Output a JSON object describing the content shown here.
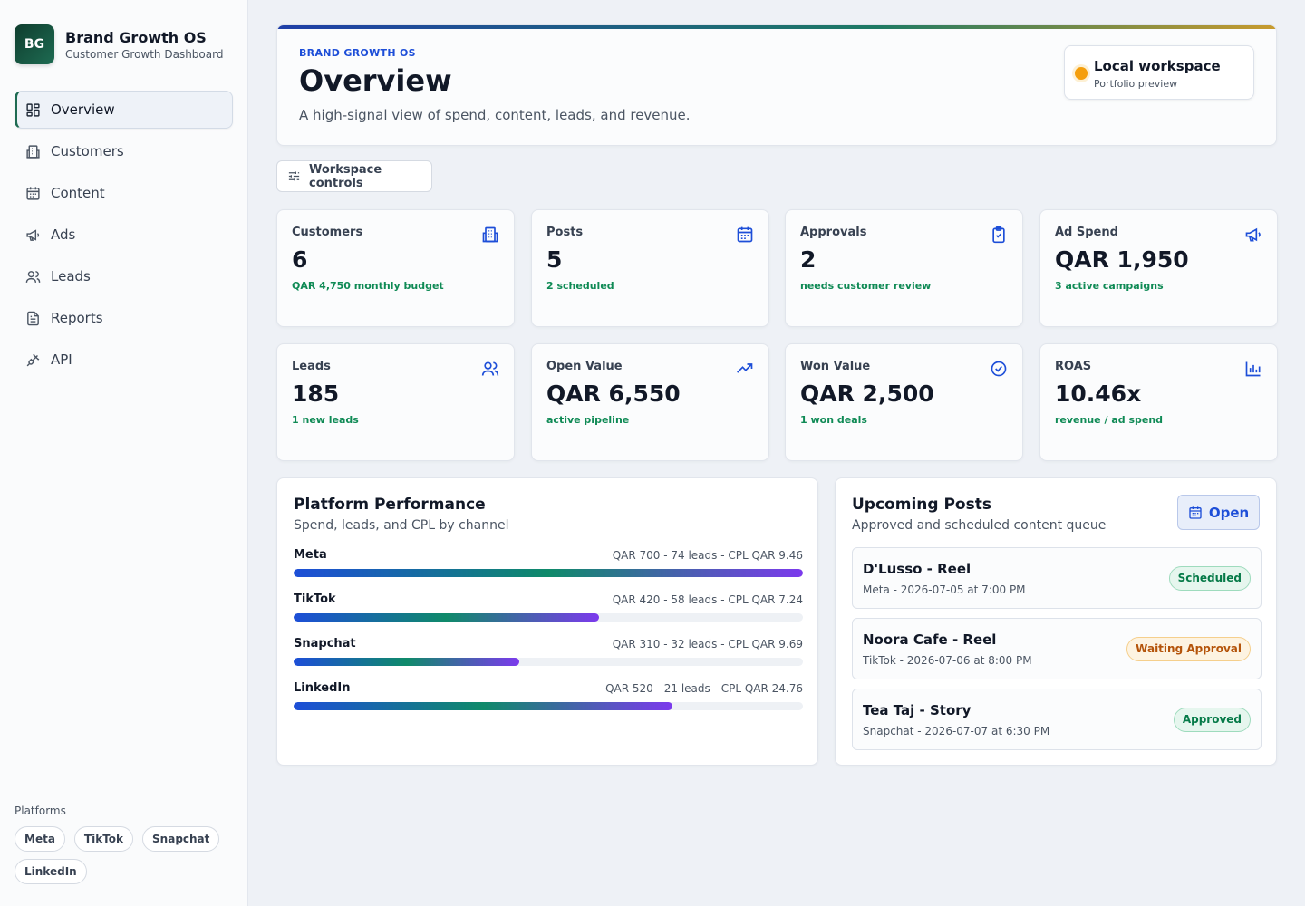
{
  "brand": {
    "logo": "BG",
    "name": "Brand Growth OS",
    "subtitle": "Customer Growth Dashboard"
  },
  "nav": [
    {
      "label": "Overview",
      "icon": "grid-icon",
      "active": true
    },
    {
      "label": "Customers",
      "icon": "building-icon"
    },
    {
      "label": "Content",
      "icon": "calendar-icon"
    },
    {
      "label": "Ads",
      "icon": "megaphone-icon"
    },
    {
      "label": "Leads",
      "icon": "users-icon"
    },
    {
      "label": "Reports",
      "icon": "file-icon"
    },
    {
      "label": "API",
      "icon": "plug-icon"
    }
  ],
  "platforms": {
    "title": "Platforms",
    "chips": [
      "Meta",
      "TikTok",
      "Snapchat",
      "LinkedIn"
    ]
  },
  "hero": {
    "kicker": "BRAND GROWTH OS",
    "title": "Overview",
    "description": "A high-signal view of spend, content, leads, and revenue.",
    "workspace_title": "Local workspace",
    "workspace_sub": "Portfolio preview"
  },
  "controls": {
    "label": "Workspace controls"
  },
  "kpis": [
    {
      "label": "Customers",
      "value": "6",
      "note": "QAR 4,750 monthly budget",
      "icon": "building-icon"
    },
    {
      "label": "Posts",
      "value": "5",
      "note": "2 scheduled",
      "icon": "calendar-icon"
    },
    {
      "label": "Approvals",
      "value": "2",
      "note": "needs customer review",
      "icon": "clipboard-check-icon"
    },
    {
      "label": "Ad Spend",
      "value": "QAR 1,950",
      "note": "3 active campaigns",
      "icon": "megaphone-icon"
    },
    {
      "label": "Leads",
      "value": "185",
      "note": "1 new leads",
      "icon": "users-icon"
    },
    {
      "label": "Open Value",
      "value": "QAR 6,550",
      "note": "active pipeline",
      "icon": "trend-up-icon"
    },
    {
      "label": "Won Value",
      "value": "QAR 2,500",
      "note": "1 won deals",
      "icon": "check-circle-icon"
    },
    {
      "label": "ROAS",
      "value": "10.46x",
      "note": "revenue / ad spend",
      "icon": "bar-chart-icon"
    }
  ],
  "performance": {
    "title": "Platform Performance",
    "subtitle": "Spend, leads, and CPL by channel",
    "rows": [
      {
        "name": "Meta",
        "stats": "QAR 700 - 74 leads - CPL QAR 9.46",
        "fill": 1.0
      },
      {
        "name": "TikTok",
        "stats": "QAR 420 - 58 leads - CPL QAR 7.24",
        "fill": 0.6
      },
      {
        "name": "Snapchat",
        "stats": "QAR 310 - 32 leads - CPL QAR 9.69",
        "fill": 0.443
      },
      {
        "name": "LinkedIn",
        "stats": "QAR 520 - 21 leads - CPL QAR 24.76",
        "fill": 0.743
      }
    ]
  },
  "upcoming": {
    "title": "Upcoming Posts",
    "subtitle": "Approved and scheduled content queue",
    "open_label": "Open",
    "posts": [
      {
        "title": "D'Lusso - Reel",
        "meta": "Meta - 2026-07-05 at 7:00 PM",
        "status": "Scheduled",
        "tone": "green"
      },
      {
        "title": "Noora Cafe - Reel",
        "meta": "TikTok - 2026-07-06 at 8:00 PM",
        "status": "Waiting Approval",
        "tone": "amber"
      },
      {
        "title": "Tea Taj - Story",
        "meta": "Snapchat - 2026-07-07 at 6:30 PM",
        "status": "Approved",
        "tone": "green"
      }
    ]
  }
}
